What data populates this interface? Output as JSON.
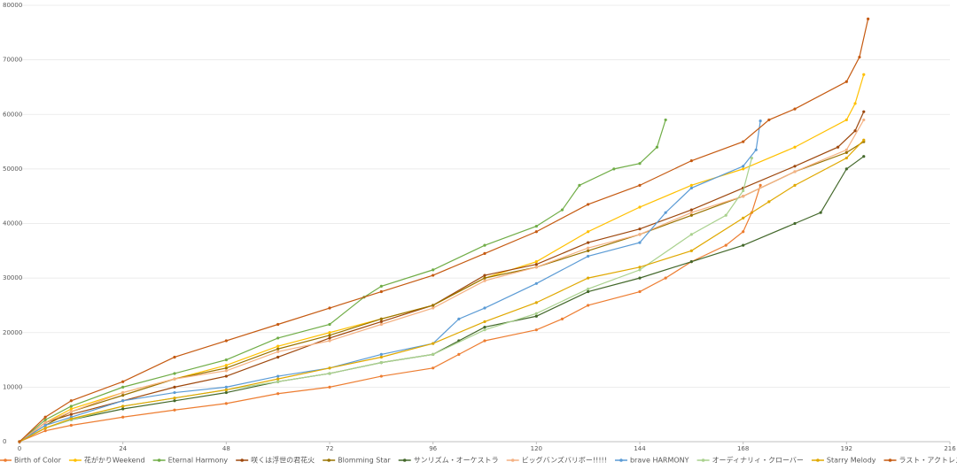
{
  "chart_data": {
    "type": "line",
    "xlim": [
      0,
      216
    ],
    "xticks": [
      0,
      24,
      48,
      72,
      96,
      120,
      144,
      168,
      192,
      216
    ],
    "ylim": [
      0,
      80000
    ],
    "yticks": [
      0,
      10000,
      20000,
      30000,
      40000,
      50000,
      60000,
      70000,
      80000
    ],
    "grid": true,
    "legend": "bottom",
    "series": [
      {
        "name": "Birth of Color",
        "color": "#ed7d31",
        "x": [
          0,
          6,
          12,
          24,
          36,
          48,
          60,
          72,
          84,
          96,
          102,
          108,
          120,
          126,
          132,
          144,
          150,
          156,
          164,
          168,
          170,
          172
        ],
        "values": [
          0,
          2000,
          3000,
          4500,
          5800,
          7000,
          8800,
          10000,
          12000,
          13500,
          16000,
          18500,
          20500,
          22500,
          25000,
          27500,
          30000,
          33000,
          36000,
          38500,
          42000,
          47000
        ]
      },
      {
        "name": "花がかりWeekend",
        "color": "#ffc000",
        "x": [
          0,
          6,
          12,
          24,
          36,
          48,
          60,
          72,
          84,
          96,
          108,
          120,
          132,
          144,
          156,
          168,
          180,
          192,
          194,
          196
        ],
        "values": [
          0,
          3500,
          6000,
          9000,
          11500,
          14000,
          17500,
          20000,
          22500,
          25000,
          30000,
          33000,
          38500,
          43000,
          47000,
          50000,
          54000,
          59000,
          62000,
          67300
        ]
      },
      {
        "name": "Eternal Harmony",
        "color": "#70ad47",
        "x": [
          0,
          6,
          12,
          24,
          36,
          48,
          60,
          72,
          80,
          84,
          96,
          108,
          120,
          126,
          130,
          138,
          144,
          148,
          150
        ],
        "values": [
          0,
          4000,
          6500,
          10000,
          12500,
          15000,
          19000,
          21500,
          26500,
          28500,
          31500,
          36000,
          39500,
          42500,
          47000,
          50000,
          51000,
          54000,
          59000
        ]
      },
      {
        "name": "咲くは浮世の君花火",
        "color": "#9e480e",
        "x": [
          0,
          6,
          12,
          24,
          36,
          48,
          60,
          72,
          84,
          96,
          108,
          120,
          132,
          144,
          156,
          168,
          180,
          190,
          194,
          196
        ],
        "values": [
          0,
          3500,
          5000,
          7500,
          10000,
          12000,
          15500,
          19000,
          22000,
          25000,
          30500,
          32500,
          36500,
          39000,
          42500,
          46500,
          50500,
          54000,
          57000,
          60500
        ]
      },
      {
        "name": "Blomming Star",
        "color": "#997300",
        "x": [
          0,
          6,
          12,
          24,
          36,
          48,
          60,
          72,
          84,
          96,
          108,
          120,
          132,
          144,
          156,
          168,
          180,
          192,
          196
        ],
        "values": [
          0,
          3000,
          5500,
          8500,
          11500,
          13500,
          17000,
          19500,
          22500,
          25000,
          30000,
          32000,
          35000,
          38000,
          41500,
          45000,
          49500,
          53000,
          55000
        ]
      },
      {
        "name": "サンリズム・オーケストラ",
        "color": "#43682b",
        "x": [
          0,
          6,
          12,
          24,
          36,
          48,
          60,
          72,
          84,
          96,
          102,
          108,
          120,
          132,
          144,
          156,
          168,
          180,
          186,
          192,
          196
        ],
        "values": [
          0,
          2500,
          4000,
          6000,
          7500,
          9000,
          11000,
          12500,
          14500,
          16000,
          18500,
          21000,
          23000,
          27500,
          30000,
          33000,
          36000,
          40000,
          42000,
          50000,
          52300
        ]
      },
      {
        "name": "ビッグバンズバリボー!!!!!",
        "color": "#f4b183",
        "x": [
          0,
          6,
          12,
          24,
          36,
          48,
          60,
          72,
          84,
          96,
          108,
          120,
          132,
          144,
          156,
          168,
          180,
          192,
          196
        ],
        "values": [
          0,
          3500,
          5500,
          9000,
          11500,
          13000,
          16500,
          18500,
          21500,
          24500,
          29500,
          32000,
          35500,
          38000,
          42000,
          45000,
          49500,
          53500,
          59000
        ]
      },
      {
        "name": "brave HARMONY",
        "color": "#5b9bd5",
        "x": [
          0,
          6,
          12,
          24,
          36,
          48,
          60,
          72,
          84,
          96,
          102,
          108,
          120,
          132,
          144,
          150,
          156,
          168,
          171,
          172
        ],
        "values": [
          0,
          3000,
          4500,
          7500,
          9000,
          10000,
          12000,
          13500,
          16000,
          18000,
          22500,
          24500,
          29000,
          34000,
          36500,
          42000,
          46500,
          50500,
          53500,
          58800
        ]
      },
      {
        "name": "オーディナリィ・クローバー",
        "color": "#a9d18e",
        "x": [
          0,
          6,
          12,
          24,
          36,
          48,
          60,
          72,
          84,
          96,
          108,
          120,
          132,
          144,
          156,
          164,
          168,
          170
        ],
        "values": [
          0,
          2500,
          4000,
          6500,
          8000,
          9500,
          11000,
          12500,
          14500,
          16000,
          20500,
          23500,
          28000,
          31500,
          38000,
          41500,
          46000,
          52000
        ]
      },
      {
        "name": "Starry Melody",
        "color": "#e0a800",
        "x": [
          0,
          6,
          12,
          24,
          36,
          48,
          60,
          72,
          84,
          96,
          108,
          120,
          132,
          144,
          156,
          168,
          174,
          180,
          192,
          196
        ],
        "values": [
          0,
          2500,
          4200,
          6500,
          8000,
          9500,
          11500,
          13500,
          15500,
          18000,
          22000,
          25500,
          30000,
          32000,
          35000,
          41000,
          44000,
          47000,
          52000,
          55300
        ]
      },
      {
        "name": "ラスト・アクトレス",
        "color": "#c55a11",
        "x": [
          0,
          6,
          12,
          24,
          36,
          48,
          60,
          72,
          84,
          96,
          108,
          120,
          132,
          144,
          156,
          168,
          174,
          180,
          192,
          195,
          197
        ],
        "values": [
          0,
          4500,
          7500,
          11000,
          15500,
          18500,
          21500,
          24500,
          27500,
          30500,
          34500,
          38500,
          43500,
          47000,
          51500,
          55000,
          59000,
          61000,
          66000,
          70500,
          77500
        ]
      }
    ]
  }
}
